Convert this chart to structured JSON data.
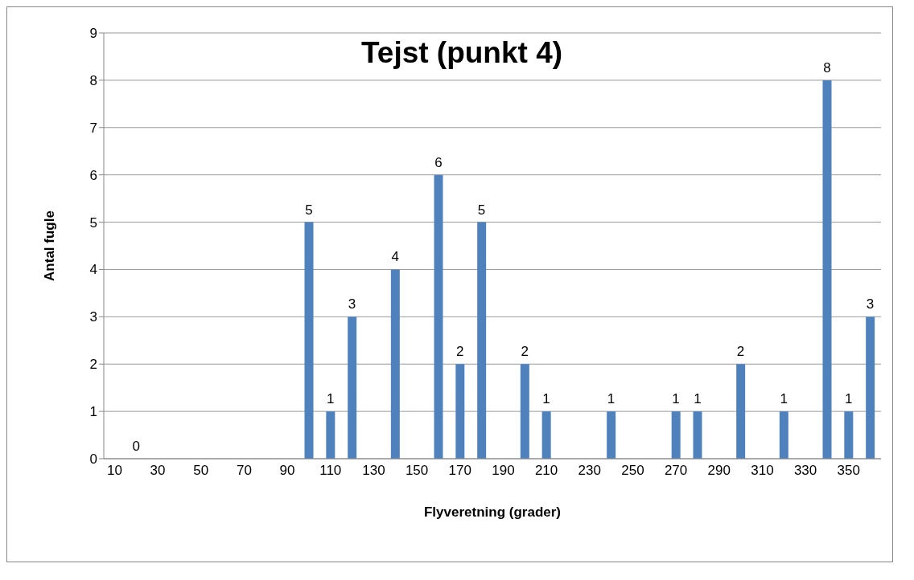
{
  "chart_data": {
    "type": "bar",
    "title": "Tejst (punkt 4)",
    "xlabel": "Flyveretning (grader)",
    "ylabel": "Antal fugle",
    "categories": [
      "10",
      null,
      "30",
      null,
      "50",
      null,
      "70",
      null,
      "90",
      null,
      "110",
      null,
      "130",
      null,
      "150",
      null,
      "170",
      null,
      "190",
      null,
      "210",
      null,
      "230",
      null,
      "250",
      null,
      "270",
      null,
      "290",
      null,
      "310",
      null,
      "330",
      null,
      "350",
      null
    ],
    "values": [
      0,
      0,
      0,
      0,
      0,
      0,
      0,
      0,
      0,
      5,
      1,
      3,
      0,
      4,
      0,
      6,
      2,
      5,
      0,
      2,
      1,
      0,
      0,
      1,
      0,
      0,
      1,
      1,
      0,
      2,
      0,
      1,
      0,
      8,
      1,
      3
    ],
    "value_labels": [
      null,
      "0",
      null,
      null,
      null,
      null,
      null,
      null,
      null,
      "5",
      "1",
      "3",
      null,
      "4",
      null,
      "6",
      "2",
      "5",
      null,
      "2",
      "1",
      null,
      null,
      "1",
      null,
      null,
      "1",
      "1",
      null,
      "2",
      null,
      "1",
      null,
      "8",
      "1",
      "3"
    ],
    "color": "#4f81bd",
    "ylim": [
      0,
      9
    ],
    "yticks": [
      0,
      1,
      2,
      3,
      4,
      5,
      6,
      7,
      8,
      9
    ],
    "grid": "y",
    "legend": false
  }
}
